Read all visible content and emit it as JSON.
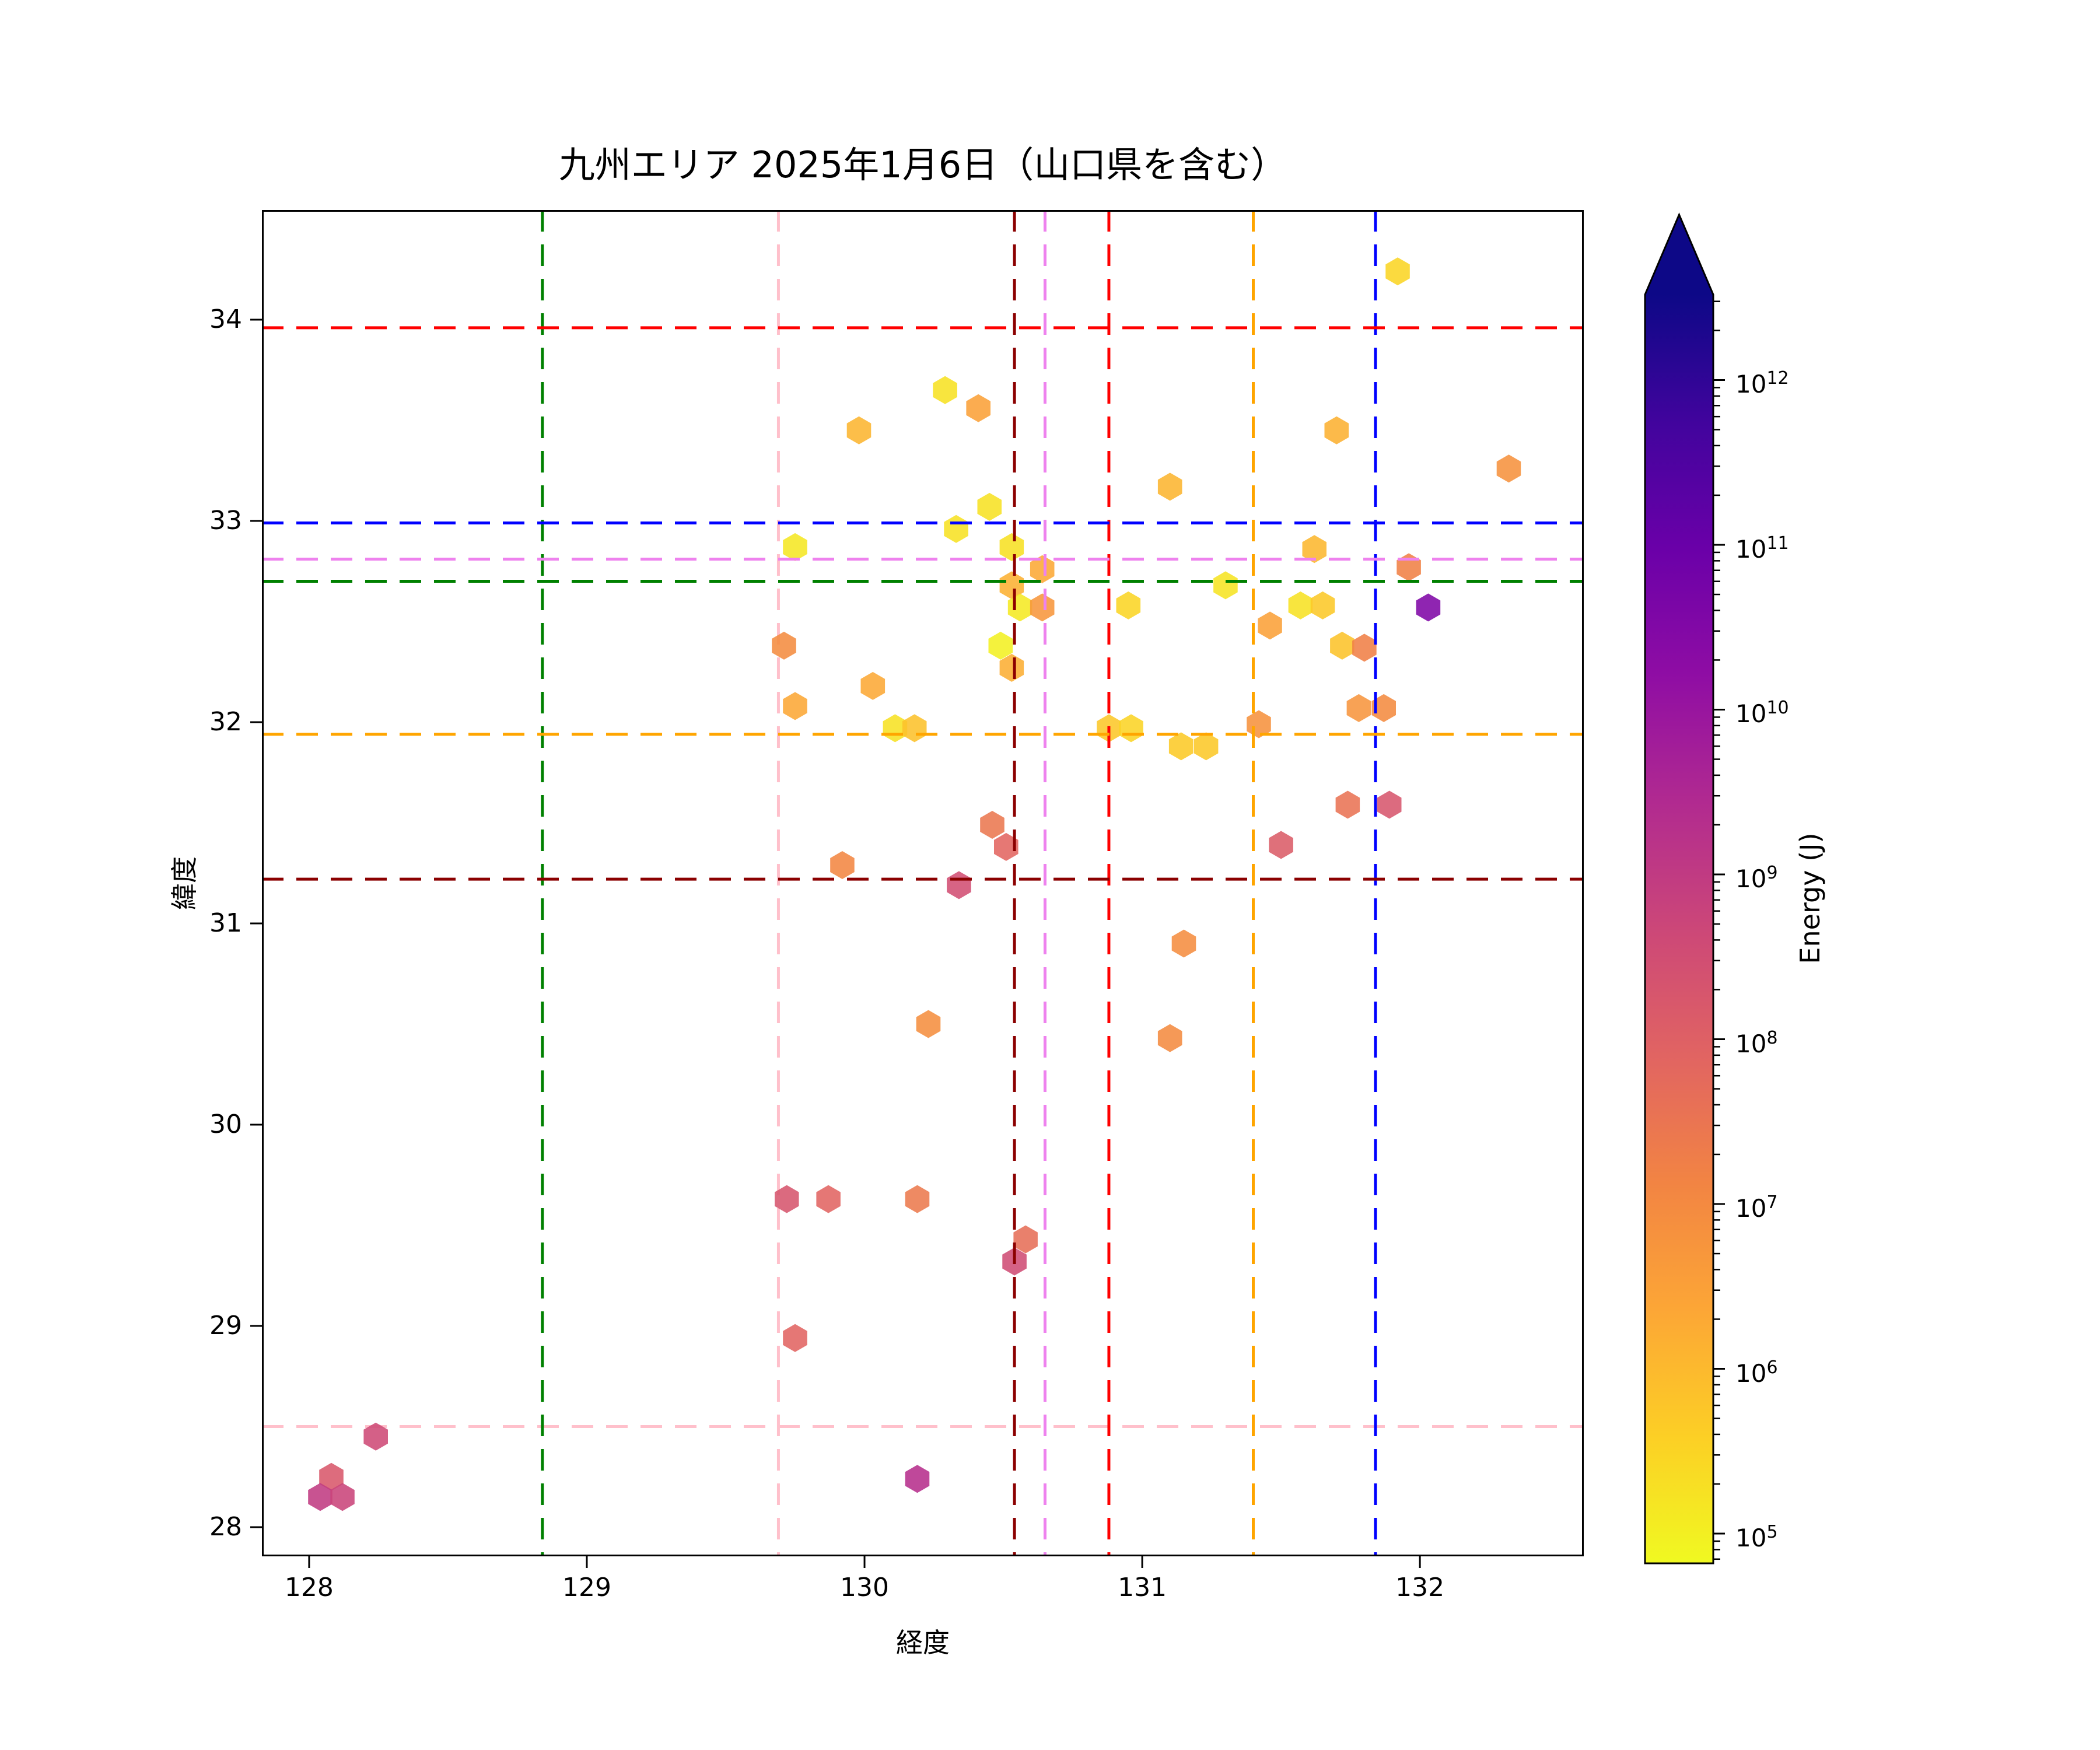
{
  "title": "九州エリア 2025年1月6日（山口県を含む）",
  "axes": {
    "xlabel": "経度",
    "ylabel": "緯度"
  },
  "colorbar": {
    "label": "Energy (J)",
    "scale": "log",
    "tick_exponents": [
      5,
      6,
      7,
      8,
      9,
      10,
      11,
      12
    ],
    "extend": "max",
    "colormap": "plasma_r"
  },
  "chart_data": {
    "type": "scatter",
    "marker": "hexagon",
    "title": "九州エリア 2025年1月6日（山口県を含む）",
    "xlabel": "経度",
    "ylabel": "緯度",
    "xlim": [
      127.83,
      132.59
    ],
    "ylim": [
      27.855,
      34.545
    ],
    "xticks": [
      128,
      129,
      130,
      131,
      132
    ],
    "yticks": [
      28,
      29,
      30,
      31,
      32,
      33,
      34
    ],
    "grid": false,
    "legend": "none",
    "color_scale": {
      "type": "log",
      "colormap": "plasma_r",
      "vmin": 66000,
      "vmax": 3300000000000,
      "label": "Energy (J)"
    },
    "points": [
      {
        "lon": 130.29,
        "lat": 33.65,
        "energy_j": 180000.0
      },
      {
        "lon": 130.41,
        "lat": 33.56,
        "energy_j": 2900000.0
      },
      {
        "lon": 129.98,
        "lat": 33.45,
        "energy_j": 1200000.0
      },
      {
        "lon": 131.92,
        "lat": 34.24,
        "energy_j": 300000.0
      },
      {
        "lon": 131.7,
        "lat": 33.45,
        "energy_j": 1400000.0
      },
      {
        "lon": 132.32,
        "lat": 33.26,
        "energy_j": 6500000.0
      },
      {
        "lon": 131.1,
        "lat": 33.17,
        "energy_j": 1200000.0
      },
      {
        "lon": 130.45,
        "lat": 33.07,
        "energy_j": 180000.0
      },
      {
        "lon": 130.33,
        "lat": 32.96,
        "energy_j": 180000.0
      },
      {
        "lon": 129.75,
        "lat": 32.87,
        "energy_j": 140000.0
      },
      {
        "lon": 131.62,
        "lat": 32.86,
        "energy_j": 1100000.0
      },
      {
        "lon": 131.96,
        "lat": 32.77,
        "energy_j": 16000000.0
      },
      {
        "lon": 130.53,
        "lat": 32.87,
        "energy_j": 190000.0
      },
      {
        "lon": 130.64,
        "lat": 32.76,
        "energy_j": 2000000.0
      },
      {
        "lon": 130.53,
        "lat": 32.68,
        "energy_j": 1500000.0
      },
      {
        "lon": 131.3,
        "lat": 32.68,
        "energy_j": 160000.0
      },
      {
        "lon": 130.56,
        "lat": 32.57,
        "energy_j": 130000.0
      },
      {
        "lon": 130.64,
        "lat": 32.57,
        "energy_j": 5300000.0
      },
      {
        "lon": 130.95,
        "lat": 32.58,
        "energy_j": 300000.0
      },
      {
        "lon": 131.57,
        "lat": 32.58,
        "energy_j": 180000.0
      },
      {
        "lon": 131.65,
        "lat": 32.58,
        "energy_j": 530000.0
      },
      {
        "lon": 132.03,
        "lat": 32.57,
        "energy_j": 35000000000.0
      },
      {
        "lon": 131.46,
        "lat": 32.48,
        "energy_j": 2900000.0
      },
      {
        "lon": 130.49,
        "lat": 32.38,
        "energy_j": 95000.0
      },
      {
        "lon": 130.53,
        "lat": 32.27,
        "energy_j": 1600000.0
      },
      {
        "lon": 129.71,
        "lat": 32.38,
        "energy_j": 9000000.0
      },
      {
        "lon": 131.72,
        "lat": 32.38,
        "energy_j": 650000.0
      },
      {
        "lon": 131.8,
        "lat": 32.37,
        "energy_j": 17000000.0
      },
      {
        "lon": 129.75,
        "lat": 32.08,
        "energy_j": 2200000.0
      },
      {
        "lon": 130.03,
        "lat": 32.18,
        "energy_j": 2000000.0
      },
      {
        "lon": 130.11,
        "lat": 31.97,
        "energy_j": 180000.0
      },
      {
        "lon": 130.18,
        "lat": 31.97,
        "energy_j": 700000.0
      },
      {
        "lon": 130.88,
        "lat": 31.97,
        "energy_j": 560000.0
      },
      {
        "lon": 130.96,
        "lat": 31.97,
        "energy_j": 320000.0
      },
      {
        "lon": 131.78,
        "lat": 32.07,
        "energy_j": 5600000.0
      },
      {
        "lon": 131.87,
        "lat": 32.07,
        "energy_j": 9500000.0
      },
      {
        "lon": 131.42,
        "lat": 31.99,
        "energy_j": 6500000.0
      },
      {
        "lon": 131.14,
        "lat": 31.88,
        "energy_j": 500000.0
      },
      {
        "lon": 131.23,
        "lat": 31.88,
        "energy_j": 530000.0
      },
      {
        "lon": 131.74,
        "lat": 31.59,
        "energy_j": 35000000.0
      },
      {
        "lon": 131.89,
        "lat": 31.59,
        "energy_j": 190000000.0
      },
      {
        "lon": 131.5,
        "lat": 31.39,
        "energy_j": 130000000.0
      },
      {
        "lon": 130.46,
        "lat": 31.49,
        "energy_j": 28000000.0
      },
      {
        "lon": 130.51,
        "lat": 31.38,
        "energy_j": 75000000.0
      },
      {
        "lon": 129.92,
        "lat": 31.29,
        "energy_j": 12000000.0
      },
      {
        "lon": 130.34,
        "lat": 31.19,
        "energy_j": 300000000.0
      },
      {
        "lon": 131.15,
        "lat": 30.9,
        "energy_j": 8500000.0
      },
      {
        "lon": 131.1,
        "lat": 30.43,
        "energy_j": 9500000.0
      },
      {
        "lon": 130.23,
        "lat": 30.5,
        "energy_j": 8000000.0
      },
      {
        "lon": 129.72,
        "lat": 29.63,
        "energy_j": 200000000.0
      },
      {
        "lon": 129.87,
        "lat": 29.63,
        "energy_j": 80000000.0
      },
      {
        "lon": 130.19,
        "lat": 29.63,
        "energy_j": 24000000.0
      },
      {
        "lon": 130.58,
        "lat": 29.43,
        "energy_j": 45000000.0
      },
      {
        "lon": 130.54,
        "lat": 29.32,
        "energy_j": 350000000.0
      },
      {
        "lon": 129.75,
        "lat": 28.94,
        "energy_j": 80000000.0
      },
      {
        "lon": 130.19,
        "lat": 28.24,
        "energy_j": 2000000000.0
      },
      {
        "lon": 128.24,
        "lat": 28.45,
        "energy_j": 400000000.0
      },
      {
        "lon": 128.08,
        "lat": 28.25,
        "energy_j": 170000000.0
      },
      {
        "lon": 128.04,
        "lat": 28.15,
        "energy_j": 1000000000.0
      },
      {
        "lon": 128.12,
        "lat": 28.15,
        "energy_j": 550000000.0
      }
    ],
    "reference_lines": {
      "vertical": [
        {
          "color_name": "green",
          "hex": "#008000",
          "lon": 128.84
        },
        {
          "color_name": "pink",
          "hex": "#ffc0cb",
          "lon": 129.69
        },
        {
          "color_name": "darkred",
          "hex": "#8b0000",
          "lon": 130.54
        },
        {
          "color_name": "violet",
          "hex": "#ee82ee",
          "lon": 130.65
        },
        {
          "color_name": "red",
          "hex": "#ff0000",
          "lon": 130.88
        },
        {
          "color_name": "orange",
          "hex": "#ffa500",
          "lon": 131.4
        },
        {
          "color_name": "blue",
          "hex": "#0000ff",
          "lon": 131.84
        }
      ],
      "horizontal": [
        {
          "color_name": "red",
          "hex": "#ff0000",
          "lat": 33.96
        },
        {
          "color_name": "blue",
          "hex": "#0000ff",
          "lat": 32.99
        },
        {
          "color_name": "violet",
          "hex": "#ee82ee",
          "lat": 32.81
        },
        {
          "color_name": "green",
          "hex": "#008000",
          "lat": 32.7
        },
        {
          "color_name": "orange",
          "hex": "#ffa500",
          "lat": 31.94
        },
        {
          "color_name": "darkred",
          "hex": "#8b0000",
          "lat": 31.22
        },
        {
          "color_name": "pink",
          "hex": "#ffc0cb",
          "lat": 28.5
        }
      ]
    }
  }
}
